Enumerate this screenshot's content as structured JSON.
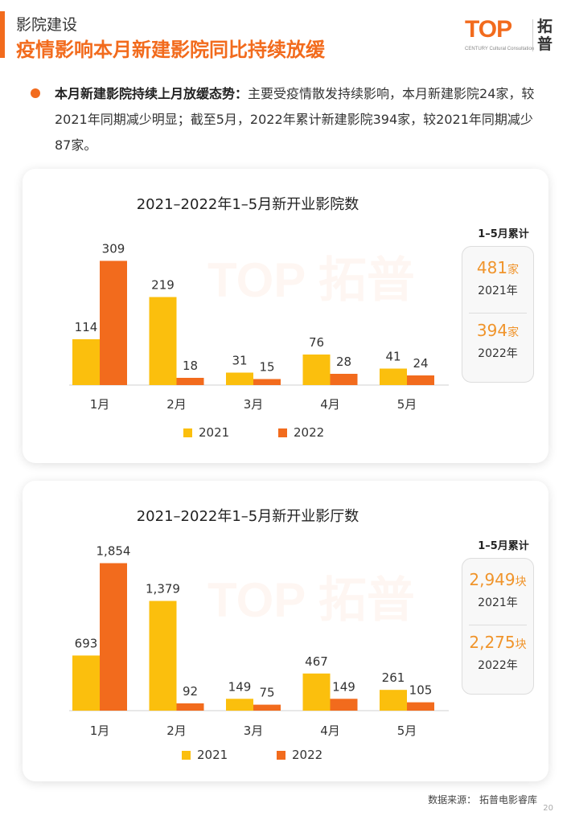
{
  "header": {
    "section": "影院建设",
    "headline": "疫情影响本月新建影院同比持续放缓"
  },
  "logo": {
    "top": "TOP",
    "sub": "CENTURY  Cultural Consultation",
    "cn": "拓普"
  },
  "bullet": {
    "bold": "本月新建影院持续上月放缓态势：",
    "text": "主要受疫情散发持续影响，本月新建影院24家，较2021年同期减少明显；截至5月，2022年累计新建影院394家，较2021年同期减少87家。"
  },
  "colors": {
    "series2021": "#fbbf0d",
    "series2022": "#f26b1d",
    "accent": "#f26b1d",
    "total": "#f0942b"
  },
  "watermark_text": "TOP 拓普",
  "chart_data": [
    {
      "type": "bar",
      "title": "2021–2022年1–5月新开业影院数",
      "categories": [
        "1月",
        "2月",
        "3月",
        "4月",
        "5月"
      ],
      "series": [
        {
          "name": "2021",
          "values": [
            114,
            219,
            31,
            76,
            41
          ],
          "labels": [
            "114",
            "219",
            "31",
            "76",
            "41"
          ]
        },
        {
          "name": "2022",
          "values": [
            309,
            18,
            15,
            28,
            24
          ],
          "labels": [
            "309",
            "18",
            "15",
            "28",
            "24"
          ]
        }
      ],
      "ylim": [
        0,
        320
      ],
      "legend": "bottom",
      "totals": {
        "header": "1–5月累计",
        "items": [
          {
            "value": "481",
            "unit": "家",
            "year": "2021年"
          },
          {
            "value": "394",
            "unit": "家",
            "year": "2022年"
          }
        ]
      }
    },
    {
      "type": "bar",
      "title": "2021–2022年1–5月新开业影厅数",
      "categories": [
        "1月",
        "2月",
        "3月",
        "4月",
        "5月"
      ],
      "series": [
        {
          "name": "2021",
          "values": [
            693,
            1379,
            149,
            467,
            261
          ],
          "labels": [
            "693",
            "1,379",
            "149",
            "467",
            "261"
          ]
        },
        {
          "name": "2022",
          "values": [
            1854,
            92,
            75,
            149,
            105
          ],
          "labels": [
            "1,854",
            "92",
            "75",
            "149",
            "105"
          ]
        }
      ],
      "ylim": [
        0,
        1920
      ],
      "legend": "bottom",
      "totals": {
        "header": "1–5月累计",
        "items": [
          {
            "value": "2,949",
            "unit": "块",
            "year": "2021年"
          },
          {
            "value": "2,275",
            "unit": "块",
            "year": "2022年"
          }
        ]
      }
    }
  ],
  "footer": {
    "source": "数据来源：  拓普电影睿库",
    "page": "20"
  }
}
